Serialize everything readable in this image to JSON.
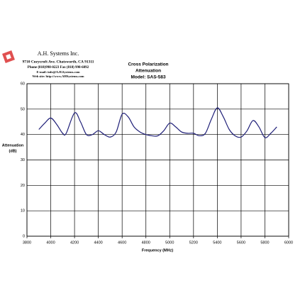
{
  "chart_data": {
    "type": "line",
    "title": [
      "Cross Polarization",
      "Attenuation",
      "Model: SAS-583"
    ],
    "company": {
      "name": "A.H. Systems Inc.",
      "address": "9710 Cozycroft Ave. Chatsworth, CA 91311",
      "phone": "Phone (818)998-0223 Fax (818) 998-6892",
      "email": "E-mail: info@A.H.Systems.com",
      "web": "Web site: http://www.AHSystems.com"
    },
    "xlabel": "Frequency (MHz)",
    "ylabel": [
      "Attenuation",
      "(dB)"
    ],
    "x": [
      3900,
      3950,
      4000,
      4050,
      4100,
      4130,
      4200,
      4250,
      4300,
      4350,
      4400,
      4450,
      4500,
      4550,
      4600,
      4650,
      4700,
      4750,
      4800,
      4850,
      4900,
      4950,
      5000,
      5050,
      5100,
      5150,
      5200,
      5250,
      5300,
      5350,
      5400,
      5450,
      5500,
      5550,
      5600,
      5650,
      5700,
      5750,
      5800,
      5850,
      5900
    ],
    "series": [
      {
        "color": "#1f1f78",
        "values": [
          42,
          44.5,
          46.5,
          44,
          40.5,
          40.5,
          48.5,
          45,
          40,
          40,
          41.5,
          40,
          39,
          41,
          48,
          47,
          43,
          41,
          40,
          39.5,
          39.5,
          41.5,
          44.5,
          43,
          41,
          40.5,
          40.5,
          39.5,
          40.5,
          46,
          50.5,
          47,
          42,
          39.5,
          39,
          41.5,
          45.5,
          43,
          38.8,
          40.5,
          43
        ]
      }
    ],
    "xlim": [
      3800,
      6000
    ],
    "xticks": [
      3800,
      4000,
      4200,
      4400,
      4600,
      4800,
      5000,
      5200,
      5400,
      5600,
      5800,
      6000
    ],
    "ylim": [
      0,
      60
    ],
    "yticks": [
      0,
      10,
      20,
      30,
      40,
      50,
      60
    ],
    "grid": true
  }
}
